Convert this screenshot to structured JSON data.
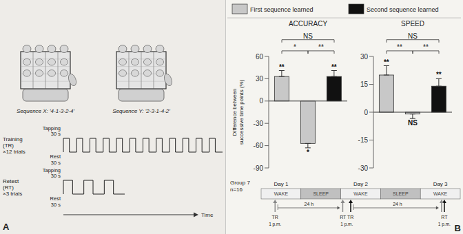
{
  "chart_data": [
    {
      "type": "bar",
      "title": "ACCURACY",
      "ylabel": "Difference between\nsuccessive time points (%)",
      "categories": [
        null,
        null,
        null
      ],
      "series": [
        {
          "name": "First sequence learned",
          "color": "#c8c8c8",
          "values": [
            33,
            -57,
            null
          ],
          "errors": [
            4,
            3,
            null
          ]
        },
        {
          "name": "Second sequence learned",
          "color": "#111111",
          "values": [
            null,
            null,
            33
          ],
          "errors": [
            null,
            null,
            4
          ]
        }
      ],
      "ylim": [
        -90,
        60
      ],
      "yticks": [
        -90,
        -60,
        -30,
        0,
        30,
        60
      ],
      "tick_labels": "y",
      "grid": false,
      "legend": "top",
      "bar_labels": [
        "**",
        "*",
        "**"
      ],
      "brackets": [
        {
          "from": 0,
          "to": 2,
          "label": "NS"
        },
        {
          "from": 0,
          "to": 1,
          "label": "*"
        },
        {
          "from": 1,
          "to": 2,
          "label": "**"
        }
      ],
      "annotations": {
        "panel_labels": [
          "A",
          "B"
        ],
        "sequences": [
          "Sequence X: '4-1-3-2-4'",
          "Sequence Y: '2-3-1-4-2'"
        ],
        "protocol": [
          {
            "label": "Training\n(TR)\n×12 trials",
            "pulses": 12
          },
          {
            "label": "Retest\n(RT)\n×3 trials",
            "pulses": 3
          }
        ],
        "tapping_label": "Tapping\n30 s",
        "rest_label": "Rest\n30 s",
        "time_label": "Time",
        "group_label": "Group 7\nn=16",
        "day_labels": [
          "Day 1",
          "Day 2",
          "Day 3"
        ],
        "day_sections": [
          "WAKE",
          "SLEEP",
          "WAKE",
          "SLEEP",
          "WAKE"
        ],
        "timeline_marks": [
          {
            "label": "TR",
            "time": "1 p.m."
          },
          {
            "label": "RT TR",
            "time": "1 p.m."
          },
          {
            "label": "RT",
            "time": "1 p.m."
          }
        ],
        "interval_label": "24 h"
      }
    },
    {
      "type": "bar",
      "title": "SPEED",
      "categories": [
        null,
        null,
        null
      ],
      "series": [
        {
          "name": "First sequence learned",
          "color": "#c8c8c8",
          "values": [
            20,
            -1.0,
            null
          ],
          "errors": [
            2.5,
            1.2,
            null
          ]
        },
        {
          "name": "Second sequence learned",
          "color": "#111111",
          "values": [
            null,
            null,
            14
          ],
          "errors": [
            null,
            null,
            2
          ]
        }
      ],
      "ylim": [
        -30,
        30
      ],
      "yticks": [
        -30,
        -15,
        0,
        15,
        30
      ],
      "tick_labels": "y",
      "grid": false,
      "bar_labels": [
        "**",
        "NS",
        "**"
      ],
      "brackets": [
        {
          "from": 0,
          "to": 2,
          "label": "NS"
        },
        {
          "from": 0,
          "to": 1,
          "label": "**"
        },
        {
          "from": 1,
          "to": 2,
          "label": "**"
        }
      ]
    }
  ]
}
